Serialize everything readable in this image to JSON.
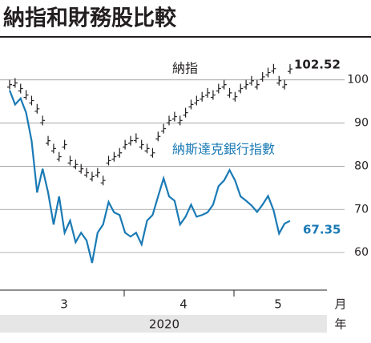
{
  "chart_data": {
    "type": "line",
    "title": "納指和財務股比較",
    "x_labels": [
      "3",
      "4",
      "5"
    ],
    "x_unit": "月",
    "year": "2020",
    "year_unit": "年",
    "series": [
      {
        "name": "納指",
        "color": "#231f20",
        "style": "bar",
        "values": [
          98.9,
          99.3,
          98.0,
          96.5,
          95.2,
          93.3,
          90.6,
          85.9,
          84.1,
          82.2,
          85.0,
          81.3,
          80.4,
          79.4,
          78.5,
          77.6,
          78.5,
          76.7,
          81.3,
          82.2,
          83.1,
          85.0,
          85.9,
          86.5,
          85.0,
          84.1,
          83.1,
          86.9,
          88.7,
          90.6,
          91.5,
          90.6,
          92.4,
          94.3,
          95.2,
          96.1,
          97.0,
          96.5,
          98.0,
          98.9,
          97.0,
          96.1,
          98.0,
          98.9,
          99.8,
          98.9,
          100.7,
          101.7,
          102.6,
          99.8,
          98.9,
          102.52
        ]
      },
      {
        "name": "納斯達克銀行指數",
        "color": "#1a7ab5",
        "style": "line",
        "values": [
          97.6,
          94.3,
          95.7,
          92.4,
          85.9,
          73.9,
          79.4,
          73.9,
          66.5,
          73.0,
          64.6,
          67.4,
          62.4,
          64.6,
          62.8,
          57.6,
          64.6,
          66.5,
          71.7,
          69.3,
          68.7,
          64.6,
          63.7,
          64.6,
          61.9,
          67.4,
          68.7,
          73.0,
          77.2,
          73.0,
          72.0,
          66.5,
          68.3,
          71.1,
          68.3,
          68.7,
          69.3,
          71.1,
          75.4,
          76.7,
          79.1,
          76.7,
          73.0,
          72.0,
          70.9,
          69.4,
          71.1,
          73.1,
          69.8,
          64.4,
          66.7,
          67.35
        ]
      }
    ],
    "ylim": [
      51.3,
      107
    ],
    "yticks": [
      60,
      70,
      80,
      90,
      100
    ],
    "grid": true
  }
}
